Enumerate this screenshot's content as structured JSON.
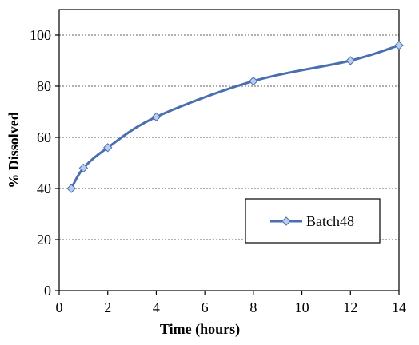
{
  "chart_data": {
    "type": "line",
    "xlabel": "Time (hours)",
    "ylabel": "% Dissolved",
    "xlim": [
      0,
      14
    ],
    "ylim": [
      0,
      110
    ],
    "xticks": [
      0,
      2,
      4,
      6,
      8,
      10,
      12,
      14
    ],
    "yticks": [
      0,
      20,
      40,
      60,
      80,
      100
    ],
    "x_tick_labels": [
      "0",
      "2",
      "4",
      "6",
      "8",
      "10",
      "12",
      "14"
    ],
    "y_tick_labels": [
      "0",
      "20",
      "40",
      "60",
      "80",
      "100"
    ],
    "grid": "horizontal dotted",
    "legend_position": "lower-right",
    "series": [
      {
        "name": "Batch48",
        "color": "#4a6fb0",
        "marker_fill": "#b8cdef",
        "x": [
          0.5,
          1,
          2,
          4,
          8,
          12,
          14
        ],
        "y": [
          40,
          48,
          56,
          68,
          82,
          90,
          96
        ]
      }
    ]
  }
}
